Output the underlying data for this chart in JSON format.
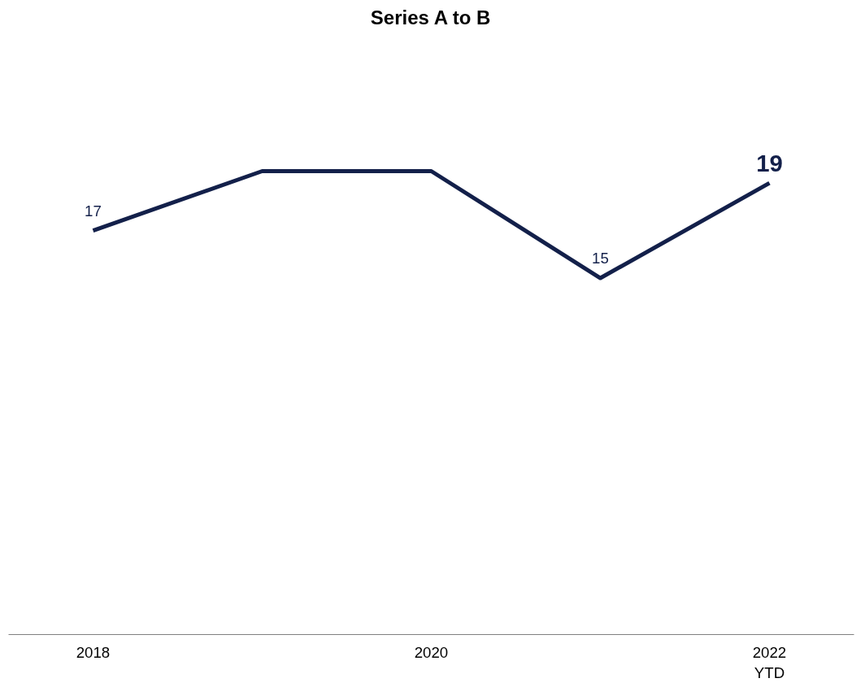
{
  "chart_data": {
    "type": "line",
    "title": "Series A to B",
    "categories": [
      "2018",
      null,
      "2020",
      null,
      "2022\nYTD"
    ],
    "series": [
      {
        "color": "#13204a",
        "values": [
          17,
          19.5,
          19.5,
          15,
          19
        ],
        "value_labels": [
          "17",
          null,
          null,
          "15",
          "19"
        ]
      }
    ],
    "tick_labels": "x",
    "marker": "none",
    "line_style": "solid"
  }
}
